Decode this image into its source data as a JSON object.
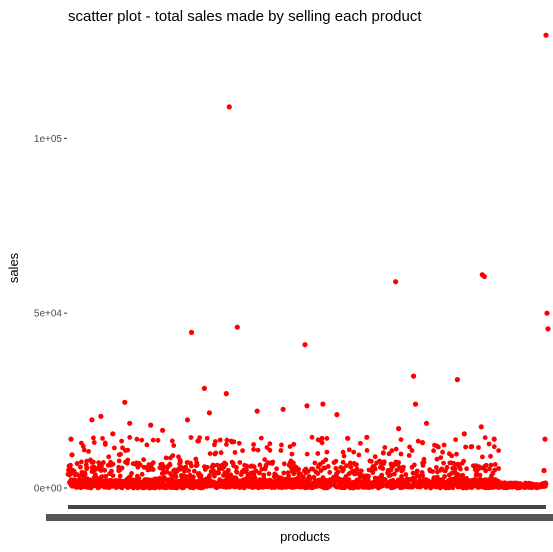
{
  "chart_data": {
    "type": "scatter",
    "title": "scatter plot - total sales made by selling each product",
    "xlabel": "products",
    "ylabel": "sales",
    "x_tick_labels_note": "overplotted/illegible product names",
    "y_ticks": [
      {
        "value": 0,
        "label": "0e+00"
      },
      {
        "value": 50000,
        "label": "5e+04"
      },
      {
        "value": 100000,
        "label": "1e+05"
      }
    ],
    "ylim": [
      -2000,
      131000
    ],
    "x_count": 1000,
    "grid": false,
    "legend": "none",
    "marker_color": "#ff0000",
    "highlight_points": [
      {
        "x": 162,
        "y": 109000
      },
      {
        "x": 170,
        "y": 46000
      },
      {
        "x": 124,
        "y": 44500
      },
      {
        "x": 238,
        "y": 41000
      },
      {
        "x": 137,
        "y": 28500
      },
      {
        "x": 159,
        "y": 27000
      },
      {
        "x": 57,
        "y": 24500
      },
      {
        "x": 190,
        "y": 22000
      },
      {
        "x": 216,
        "y": 22500
      },
      {
        "x": 240,
        "y": 23500
      },
      {
        "x": 256,
        "y": 24000
      },
      {
        "x": 33,
        "y": 20500
      },
      {
        "x": 24,
        "y": 19500
      },
      {
        "x": 142,
        "y": 21500
      },
      {
        "x": 62,
        "y": 18500
      },
      {
        "x": 120,
        "y": 19500
      },
      {
        "x": 83,
        "y": 18000
      },
      {
        "x": 95,
        "y": 16500
      },
      {
        "x": 270,
        "y": 21000
      },
      {
        "x": 329,
        "y": 59000
      },
      {
        "x": 416,
        "y": 61000
      },
      {
        "x": 418,
        "y": 60500
      },
      {
        "x": 347,
        "y": 32000
      },
      {
        "x": 391,
        "y": 31000
      },
      {
        "x": 349,
        "y": 24000
      },
      {
        "x": 332,
        "y": 17000
      },
      {
        "x": 360,
        "y": 18500
      },
      {
        "x": 398,
        "y": 15500
      },
      {
        "x": 415,
        "y": 17500
      },
      {
        "x": 428,
        "y": 14000
      },
      {
        "x": 480,
        "y": 129500
      },
      {
        "x": 481,
        "y": 50000
      },
      {
        "x": 482,
        "y": 45500
      },
      {
        "x": 479,
        "y": 14000
      },
      {
        "x": 478,
        "y": 5000
      },
      {
        "x": 3,
        "y": 14000
      },
      {
        "x": 4,
        "y": 9500
      },
      {
        "x": 45,
        "y": 15500
      },
      {
        "x": 300,
        "y": 14500
      },
      {
        "x": 356,
        "y": 13000
      }
    ]
  }
}
